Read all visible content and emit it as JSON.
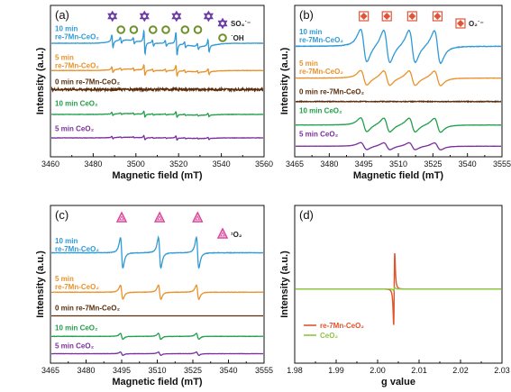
{
  "chart_data": [
    {
      "panel": "(a)",
      "type": "line",
      "xlabel": "Magnetic field (mT)",
      "ylabel": "Intensity (a.u.)",
      "xlim": [
        3460,
        3560
      ],
      "xticks": [
        3460,
        3480,
        3500,
        3520,
        3540,
        3560
      ],
      "legend": [
        {
          "symbol": "hexagram",
          "label": "SO₄˙⁻",
          "color": "#6a3aa2"
        },
        {
          "symbol": "circle",
          "label": "˙OH",
          "color": "#6f8f2a"
        }
      ],
      "markers": [
        {
          "symbol": "hexagram",
          "x": [
            3489,
            3504,
            3519,
            3534
          ],
          "color": "#6a3aa2"
        },
        {
          "symbol": "circle",
          "x": [
            3493,
            3499,
            3508,
            3514,
            3523,
            3529
          ],
          "color": "#6f8f2a"
        }
      ],
      "series": [
        {
          "name": "10 min re-7Mn-CeO₂",
          "label_lines": [
            "10 min",
            "re-7Mn-CeO₂"
          ],
          "color": "#2f9ad6",
          "kind": "so4oh",
          "amp": 1.0
        },
        {
          "name": "5 min re-7Mn-CeO₂",
          "label_lines": [
            "5 min",
            "re-7Mn-CeO₂"
          ],
          "color": "#e9922b",
          "kind": "so4oh",
          "amp": 0.45
        },
        {
          "name": "0 min re-7Mn-CeO₂",
          "label_lines": [
            "0 min re-7Mn-CeO₂"
          ],
          "color": "#5a2d0c",
          "kind": "noise",
          "amp": 0.08
        },
        {
          "name": "10 min CeO₂",
          "label_lines": [
            "10 min CeO₂"
          ],
          "color": "#21a04a",
          "kind": "so4oh",
          "amp": 0.25
        },
        {
          "name": "5 min CeO₂",
          "label_lines": [
            "5 min CeO₂"
          ],
          "color": "#7b2f9e",
          "kind": "so4oh",
          "amp": 0.18
        }
      ]
    },
    {
      "panel": "(b)",
      "type": "line",
      "xlabel": "Magnetic field (mT)",
      "ylabel": "Intensity (a.u.)",
      "xlim": [
        3465,
        3555
      ],
      "xticks": [
        3465,
        3480,
        3495,
        3510,
        3525,
        3540,
        3555
      ],
      "legend": [
        {
          "symbol": "diamond",
          "label": "O₂˙⁻",
          "color": "#e0553a"
        }
      ],
      "markers": [
        {
          "symbol": "diamond",
          "x": [
            3495,
            3505,
            3516,
            3527
          ],
          "color": "#e0553a"
        }
      ],
      "series": [
        {
          "name": "10 min re-7Mn-CeO₂",
          "label_lines": [
            "10 min",
            "re-7Mn-CeO₂"
          ],
          "color": "#2f9ad6",
          "kind": "o2",
          "amp": 1.0
        },
        {
          "name": "5 min re-7Mn-CeO₂",
          "label_lines": [
            "5 min",
            "re-7Mn-CeO₂"
          ],
          "color": "#e9922b",
          "kind": "o2",
          "amp": 0.7
        },
        {
          "name": "0 min re-7Mn-CeO₂",
          "label_lines": [
            "0 min re-7Mn-CeO₂"
          ],
          "color": "#5a2d0c",
          "kind": "noise",
          "amp": 0.05
        },
        {
          "name": "10 min CeO₂",
          "label_lines": [
            "10 min CeO₂"
          ],
          "color": "#21a04a",
          "kind": "o2",
          "amp": 0.75
        },
        {
          "name": "5 min CeO₂",
          "label_lines": [
            "5 min CeO₂"
          ],
          "color": "#7b2f9e",
          "kind": "o2",
          "amp": 0.5
        }
      ]
    },
    {
      "panel": "(c)",
      "type": "line",
      "xlabel": "Magnetic field (mT)",
      "ylabel": "Intensity (a.u.)",
      "xlim": [
        3465,
        3555
      ],
      "xticks": [
        3465,
        3480,
        3495,
        3510,
        3525,
        3540,
        3555
      ],
      "legend": [
        {
          "symbol": "triangle",
          "label": "¹O₂",
          "color": "#d8479a"
        }
      ],
      "markers": [
        {
          "symbol": "triangle",
          "x": [
            3495,
            3511,
            3527
          ],
          "color": "#d8479a"
        }
      ],
      "series": [
        {
          "name": "10 min re-7Mn-CeO₂",
          "label_lines": [
            "10 min",
            "re-7Mn-CeO₂"
          ],
          "color": "#2f9ad6",
          "kind": "singlet",
          "amp": 1.0
        },
        {
          "name": "5 min re-7Mn-CeO₂",
          "label_lines": [
            "5 min",
            "re-7Mn-CeO₂"
          ],
          "color": "#e9922b",
          "kind": "singlet",
          "amp": 0.55
        },
        {
          "name": "0 min re-7Mn-CeO₂",
          "label_lines": [
            "0 min re-7Mn-CeO₂"
          ],
          "color": "#5a2d0c",
          "kind": "flat",
          "amp": 0.0
        },
        {
          "name": "10 min CeO₂",
          "label_lines": [
            "10 min CeO₂"
          ],
          "color": "#21a04a",
          "kind": "singlet",
          "amp": 0.28
        },
        {
          "name": "5 min CeO₂",
          "label_lines": [
            "5 min CeO₂"
          ],
          "color": "#7b2f9e",
          "kind": "singlet",
          "amp": 0.2
        }
      ]
    },
    {
      "panel": "(d)",
      "type": "line",
      "xlabel": "g value",
      "ylabel": "Intensity (a.u.)",
      "xlim": [
        1.98,
        2.03
      ],
      "xticks": [
        "1.98",
        "1.99",
        "2.00",
        "2.01",
        "2.02",
        "2.03"
      ],
      "center_g": 2.004,
      "series": [
        {
          "name": "re-7Mn-CeO₂",
          "color": "#e0532b",
          "amp": 1.0
        },
        {
          "name": "CeO₂",
          "color": "#8dc63f",
          "amp": 0.05
        }
      ]
    }
  ]
}
